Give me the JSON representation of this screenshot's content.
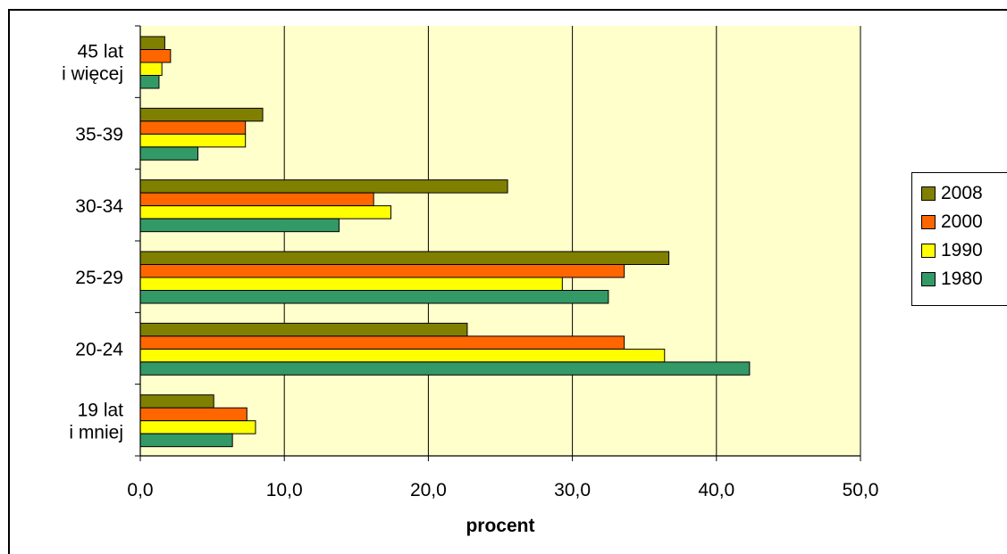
{
  "chart_data": {
    "type": "bar",
    "orientation": "horizontal",
    "categories": [
      "19 lat\ni mniej",
      "20-24",
      "25-29",
      "30-34",
      "35-39",
      "45 lat\ni więcej"
    ],
    "series": [
      {
        "name": "2008",
        "color": "#808000",
        "values": [
          5.1,
          22.7,
          36.7,
          25.5,
          8.5,
          1.7
        ]
      },
      {
        "name": "2000",
        "color": "#FF6600",
        "values": [
          7.4,
          33.6,
          33.6,
          16.2,
          7.3,
          2.1
        ]
      },
      {
        "name": "1990",
        "color": "#FFFF00",
        "values": [
          8.0,
          36.4,
          29.3,
          17.4,
          7.3,
          1.5
        ]
      },
      {
        "name": "1980",
        "color": "#339966",
        "values": [
          6.4,
          42.3,
          32.5,
          13.8,
          4.0,
          1.3
        ]
      }
    ],
    "xlabel": "procent",
    "ylabel": "",
    "title": "",
    "xlim": [
      0,
      50
    ],
    "x_ticks": [
      "0,0",
      "10,0",
      "20,0",
      "30,0",
      "40,0",
      "50,0"
    ],
    "grid": "vertical",
    "plot_background": "#FFFFCC",
    "legend_position": "right"
  },
  "legend": {
    "items": [
      {
        "label": "2008",
        "color": "#808000"
      },
      {
        "label": "2000",
        "color": "#FF6600"
      },
      {
        "label": "1990",
        "color": "#FFFF00"
      },
      {
        "label": "1980",
        "color": "#339966"
      }
    ]
  }
}
